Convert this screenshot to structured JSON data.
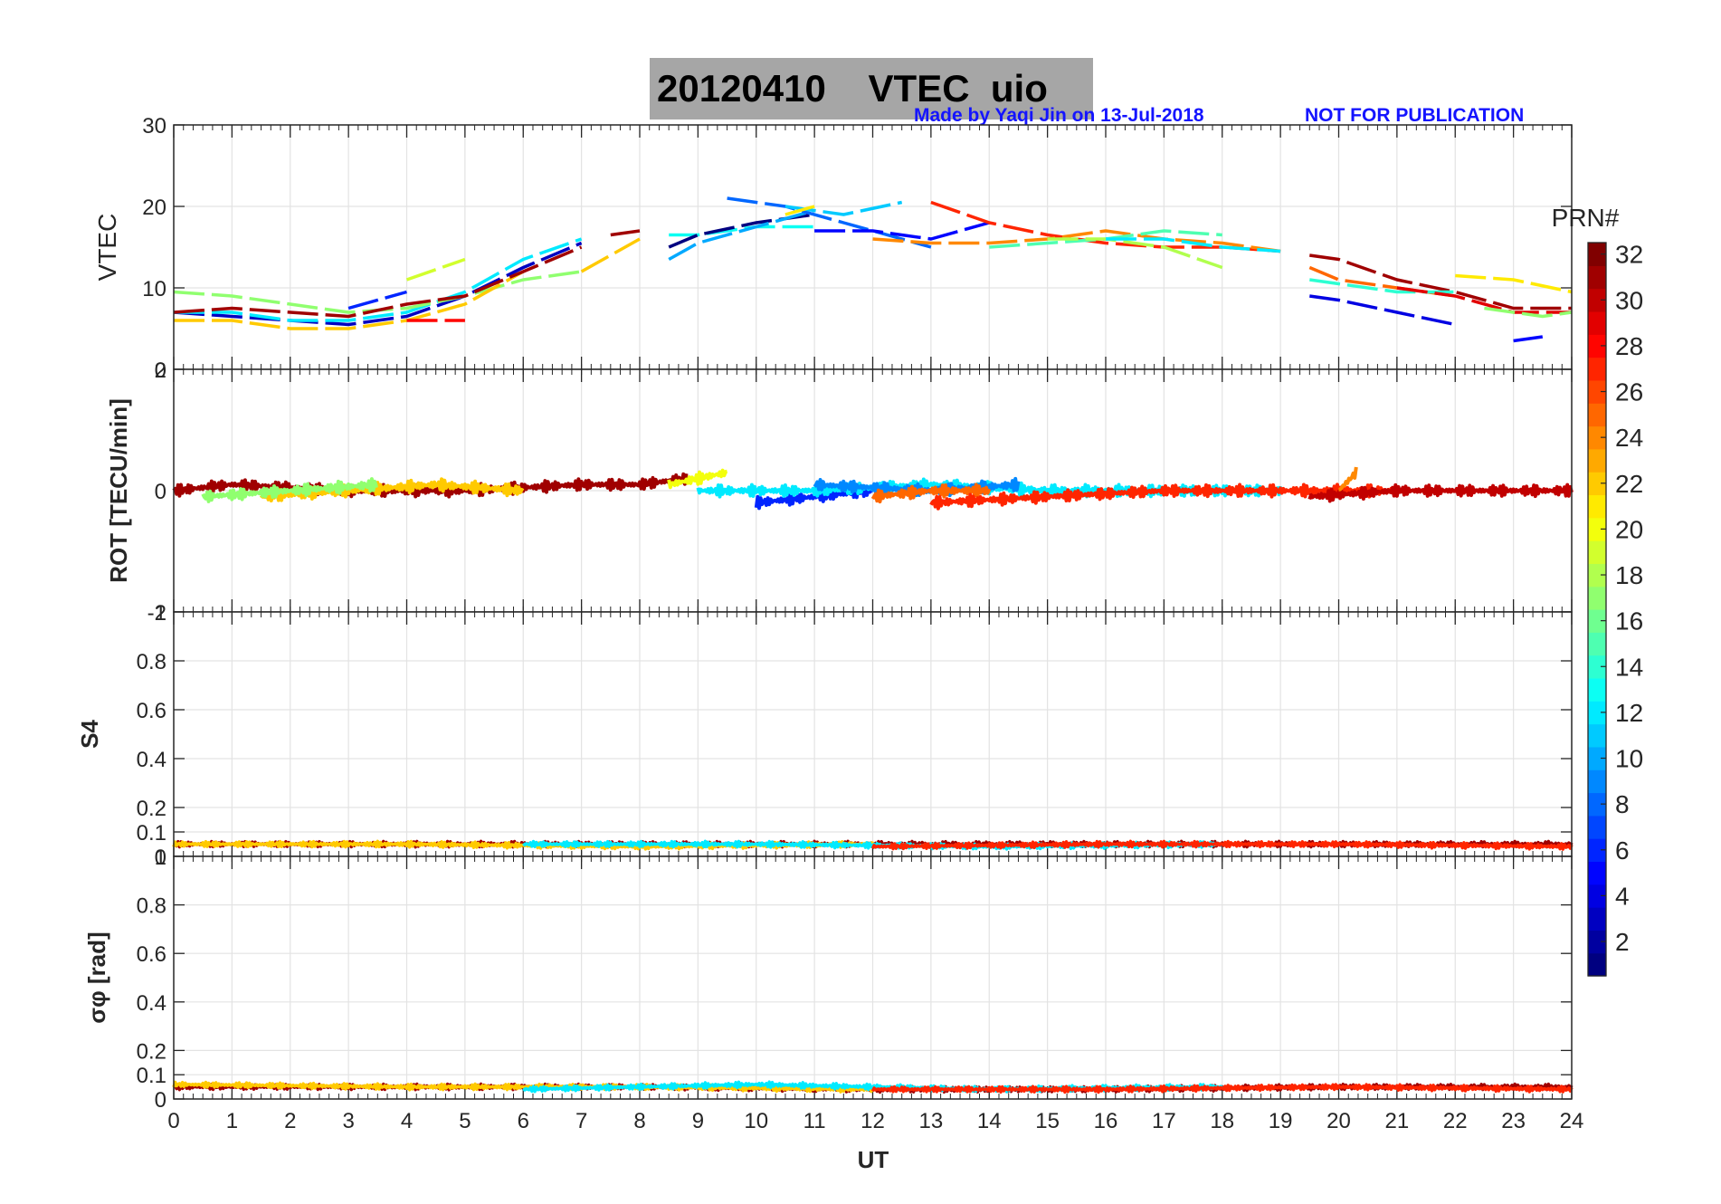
{
  "figure": {
    "title": "20120410    VTEC  uio",
    "credit_left": "Made by Yaqi Jin on 13-Jul-2018",
    "credit_right": "NOT FOR PUBLICATION",
    "colorbar_label": "PRN#",
    "colorbar_ticks": [
      "2",
      "4",
      "6",
      "8",
      "10",
      "12",
      "14",
      "16",
      "18",
      "20",
      "22",
      "24",
      "26",
      "28",
      "30",
      "32"
    ],
    "colorbar_range": [
      1,
      32
    ],
    "xlabel": "UT"
  },
  "chart_data": [
    {
      "type": "line",
      "panel": "vtec",
      "ylabel": "VTEC",
      "xlim": [
        0,
        24
      ],
      "ylim": [
        0,
        30
      ],
      "yticks": [
        "0",
        "10",
        "20",
        "30"
      ],
      "grid": true,
      "series": [
        {
          "prn": 3,
          "x": [
            0,
            1,
            2,
            3,
            4,
            5,
            6,
            7
          ],
          "values": [
            7,
            6.5,
            6,
            5.5,
            6.5,
            9,
            12.5,
            15.5
          ]
        },
        {
          "prn": 12,
          "x": [
            0,
            1,
            2,
            3,
            4,
            5,
            6,
            7
          ],
          "values": [
            7,
            7,
            6,
            6,
            7,
            9.5,
            13.5,
            16
          ]
        },
        {
          "prn": 17,
          "x": [
            0,
            1,
            2,
            3,
            4,
            5,
            6,
            7
          ],
          "values": [
            9.5,
            9,
            8,
            7,
            7.5,
            9,
            11,
            12
          ]
        },
        {
          "prn": 22,
          "x": [
            0,
            1,
            2,
            3,
            4,
            5,
            6
          ],
          "values": [
            6,
            6,
            5,
            5,
            6,
            8,
            12
          ]
        },
        {
          "prn": 31,
          "x": [
            0,
            1,
            2,
            3,
            4,
            5,
            6,
            7
          ],
          "values": [
            7,
            7.5,
            7,
            6.5,
            8,
            9,
            12,
            15
          ]
        },
        {
          "prn": 6,
          "x": [
            3,
            4
          ],
          "values": [
            7.5,
            9.5
          ]
        },
        {
          "prn": 19,
          "x": [
            4,
            5
          ],
          "values": [
            11,
            13.5
          ]
        },
        {
          "prn": 28,
          "x": [
            4,
            5
          ],
          "values": [
            6,
            6
          ]
        },
        {
          "prn": 22,
          "x": [
            7,
            7.5,
            8
          ],
          "values": [
            12,
            14,
            16
          ]
        },
        {
          "prn": 31,
          "x": [
            7.5,
            8
          ],
          "values": [
            16.5,
            17
          ]
        },
        {
          "prn": 13,
          "x": [
            8.5,
            9,
            10,
            11
          ],
          "values": [
            16.5,
            16.5,
            17.5,
            17.5
          ]
        },
        {
          "prn": 1,
          "x": [
            8.5,
            9,
            10,
            11
          ],
          "values": [
            15,
            16.5,
            18,
            19
          ]
        },
        {
          "prn": 10,
          "x": [
            8.5,
            9,
            10,
            11
          ],
          "values": [
            13.5,
            15.5,
            17.5,
            19.5
          ]
        },
        {
          "prn": 8,
          "x": [
            9.5,
            10.5,
            11.5,
            12.5,
            13
          ],
          "values": [
            21,
            20,
            18,
            16,
            15
          ]
        },
        {
          "prn": 11,
          "x": [
            10.5,
            11.5,
            12.5
          ],
          "values": [
            20,
            19,
            20.5
          ]
        },
        {
          "prn": 21,
          "x": [
            10.5,
            11
          ],
          "values": [
            19,
            20
          ]
        },
        {
          "prn": 5,
          "x": [
            11,
            12,
            13,
            14
          ],
          "values": [
            17,
            17,
            16,
            18
          ]
        },
        {
          "prn": 27,
          "x": [
            13,
            14,
            15,
            16,
            17,
            18,
            19
          ],
          "values": [
            20.5,
            18,
            16.5,
            15.5,
            15,
            15,
            14.5
          ]
        },
        {
          "prn": 24,
          "x": [
            12,
            13,
            14,
            15,
            16,
            17,
            18,
            19
          ],
          "values": [
            16,
            15.5,
            15.5,
            16,
            17,
            16,
            15.5,
            14.5
          ]
        },
        {
          "prn": 15,
          "x": [
            14,
            15,
            16,
            17,
            18
          ],
          "values": [
            15,
            15.5,
            16,
            17,
            16.5
          ]
        },
        {
          "prn": 18,
          "x": [
            15,
            16,
            17,
            18
          ],
          "values": [
            16,
            16,
            15,
            12.5
          ]
        },
        {
          "prn": 12,
          "x": [
            16,
            17,
            18,
            19
          ],
          "values": [
            16,
            16,
            15,
            14.5
          ]
        },
        {
          "prn": 4,
          "x": [
            19.5,
            20,
            21,
            22
          ],
          "values": [
            9,
            8.5,
            7,
            5.5
          ]
        },
        {
          "prn": 31,
          "x": [
            19.5,
            20,
            21,
            22,
            23,
            24
          ],
          "values": [
            14,
            13.5,
            11,
            9.5,
            7.5,
            7.5
          ]
        },
        {
          "prn": 25,
          "x": [
            19.5,
            20,
            21,
            22
          ],
          "values": [
            12.5,
            11,
            10,
            9
          ]
        },
        {
          "prn": 14,
          "x": [
            19.5,
            20,
            21,
            22
          ],
          "values": [
            11,
            10.5,
            9.5,
            9.5
          ]
        },
        {
          "prn": 29,
          "x": [
            21,
            22,
            23,
            24
          ],
          "values": [
            10,
            9,
            7,
            7
          ]
        },
        {
          "prn": 21,
          "x": [
            22,
            23,
            24
          ],
          "values": [
            11.5,
            11,
            9.5
          ]
        },
        {
          "prn": 17,
          "x": [
            22.5,
            23.5,
            24
          ],
          "values": [
            7.5,
            6.5,
            7
          ]
        },
        {
          "prn": 5,
          "x": [
            23,
            23.5
          ],
          "values": [
            3.5,
            4
          ]
        }
      ]
    },
    {
      "type": "line",
      "panel": "rot",
      "ylabel": "ROT [TECU/min]",
      "xlim": [
        0,
        24
      ],
      "ylim": [
        -2,
        2
      ],
      "yticks": [
        "-2",
        "0",
        "2"
      ],
      "grid": true,
      "series": [
        {
          "prn": 31,
          "x": [
            0,
            1,
            3,
            5,
            7,
            8,
            8.8
          ],
          "values": [
            0,
            0.1,
            0,
            0,
            0.1,
            0.1,
            0.2
          ]
        },
        {
          "prn": 22,
          "x": [
            1.5,
            3,
            4.5,
            6
          ],
          "values": [
            -0.1,
            0,
            0.1,
            0
          ]
        },
        {
          "prn": 17,
          "x": [
            0.5,
            2,
            3.5
          ],
          "values": [
            -0.1,
            0,
            0.1
          ]
        },
        {
          "prn": 20,
          "x": [
            8.5,
            9.5
          ],
          "values": [
            0.1,
            0.3
          ]
        },
        {
          "prn": 6,
          "x": [
            10,
            11,
            12
          ],
          "values": [
            -0.2,
            -0.1,
            0
          ]
        },
        {
          "prn": 12,
          "x": [
            9,
            11,
            13,
            15,
            17,
            19
          ],
          "values": [
            0,
            0,
            0.1,
            0,
            0,
            0
          ]
        },
        {
          "prn": 9,
          "x": [
            11,
            13,
            14.5
          ],
          "values": [
            0.1,
            0,
            0.1
          ]
        },
        {
          "prn": 25,
          "x": [
            12,
            13,
            14
          ],
          "values": [
            -0.1,
            0,
            0
          ]
        },
        {
          "prn": 27,
          "x": [
            13,
            15,
            17,
            19,
            21
          ],
          "values": [
            -0.2,
            -0.1,
            0,
            0,
            0
          ]
        },
        {
          "prn": 30,
          "x": [
            19.5,
            21,
            22.5,
            24
          ],
          "values": [
            -0.1,
            0,
            0,
            0
          ]
        },
        {
          "prn": 24,
          "x": [
            20,
            20.3
          ],
          "values": [
            0,
            0.3
          ]
        }
      ]
    },
    {
      "type": "line",
      "panel": "s4",
      "ylabel": "S4",
      "xlim": [
        0,
        24
      ],
      "ylim": [
        0,
        1
      ],
      "yticks": [
        "0",
        "0.1",
        "0.2",
        "0.4",
        "0.6",
        "0.8",
        "1"
      ],
      "grid": true,
      "series": [
        {
          "prn": 31,
          "x": [
            0,
            4,
            8,
            12,
            16,
            20,
            24
          ],
          "values": [
            0.05,
            0.05,
            0.05,
            0.05,
            0.05,
            0.05,
            0.05
          ]
        },
        {
          "prn": 22,
          "x": [
            0,
            4,
            8,
            12
          ],
          "values": [
            0.05,
            0.05,
            0.04,
            0.05
          ]
        },
        {
          "prn": 12,
          "x": [
            6,
            10,
            14,
            18
          ],
          "values": [
            0.05,
            0.05,
            0.04,
            0.05
          ]
        },
        {
          "prn": 27,
          "x": [
            12,
            16,
            20,
            24
          ],
          "values": [
            0.04,
            0.05,
            0.05,
            0.04
          ]
        }
      ]
    },
    {
      "type": "line",
      "panel": "sigma_phi",
      "ylabel": "σφ [rad]",
      "xlim": [
        0,
        24
      ],
      "ylim": [
        0,
        1
      ],
      "yticks": [
        "0",
        "0.1",
        "0.2",
        "0.4",
        "0.6",
        "0.8",
        "1"
      ],
      "grid": true,
      "series": [
        {
          "prn": 31,
          "x": [
            0,
            4,
            8,
            12,
            16,
            20,
            24
          ],
          "values": [
            0.05,
            0.05,
            0.05,
            0.04,
            0.04,
            0.05,
            0.05
          ]
        },
        {
          "prn": 22,
          "x": [
            0,
            4,
            8,
            12
          ],
          "values": [
            0.06,
            0.05,
            0.05,
            0.04
          ]
        },
        {
          "prn": 12,
          "x": [
            6,
            10,
            14,
            18
          ],
          "values": [
            0.04,
            0.06,
            0.04,
            0.05
          ]
        },
        {
          "prn": 27,
          "x": [
            12,
            16,
            20,
            24
          ],
          "values": [
            0.04,
            0.04,
            0.05,
            0.04
          ]
        }
      ]
    }
  ]
}
